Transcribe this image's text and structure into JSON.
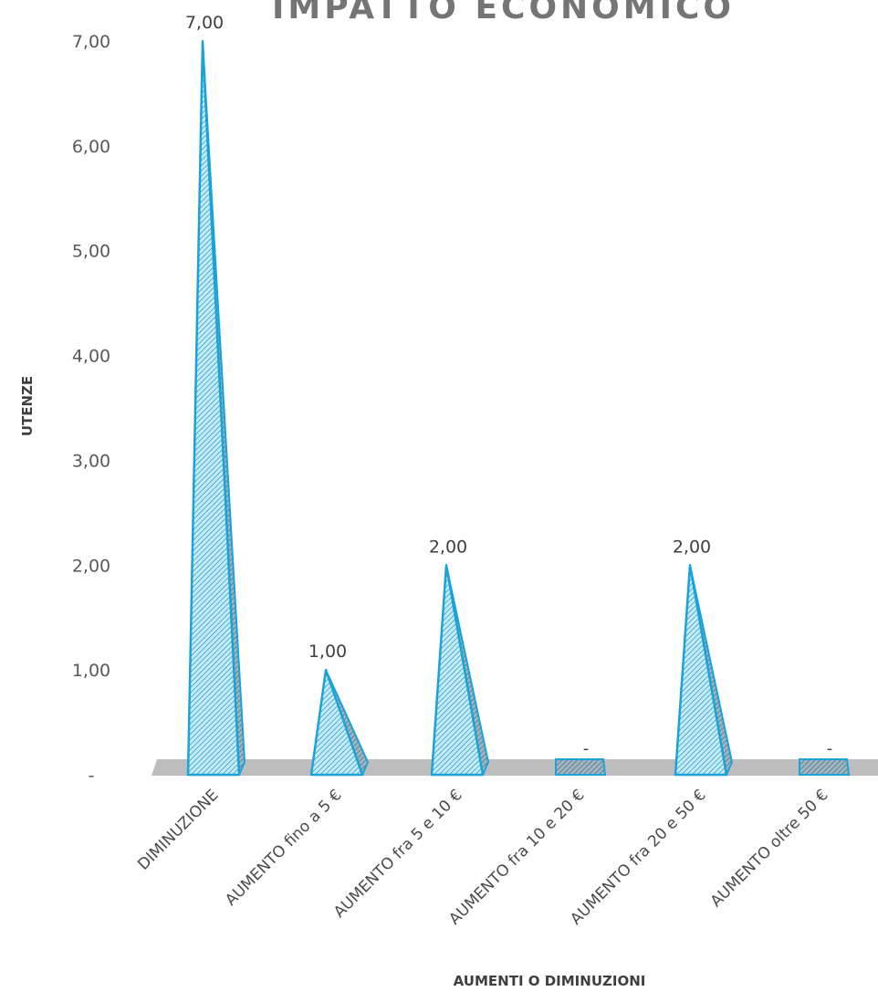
{
  "chart_data": {
    "type": "bar",
    "title": "IMPATTO ECONOMICO",
    "xlabel": "AUMENTI O DIMINUZIONI",
    "ylabel": "UTENZE",
    "categories": [
      "DIMINUZIONE",
      "AUMENTO fino a 5 €",
      "AUMENTO fra 5 e 10 €",
      "AUMENTO fra 10 e 20 €",
      "AUMENTO fra 20 e 50 €",
      "AUMENTO oltre 50 €"
    ],
    "values": [
      7,
      1,
      2,
      0,
      2,
      0
    ],
    "data_labels": [
      "7,00",
      "1,00",
      "2,00",
      "-",
      "2,00",
      "-"
    ],
    "ylim": [
      0,
      7
    ],
    "y_ticks": [
      0,
      1,
      2,
      3,
      4,
      5,
      6,
      7
    ],
    "y_tick_labels": [
      "-",
      "1,00",
      "2,00",
      "3,00",
      "4,00",
      "5,00",
      "6,00",
      "7,00"
    ],
    "grid": false,
    "legend": "none",
    "colors": {
      "mark_stroke": "#1aa3d9",
      "mark_fill": "#bfeaf7",
      "hatch": "#1a93c8",
      "floor": "#bdbdbd",
      "tick_text": "#595959",
      "title": "#757575"
    }
  }
}
